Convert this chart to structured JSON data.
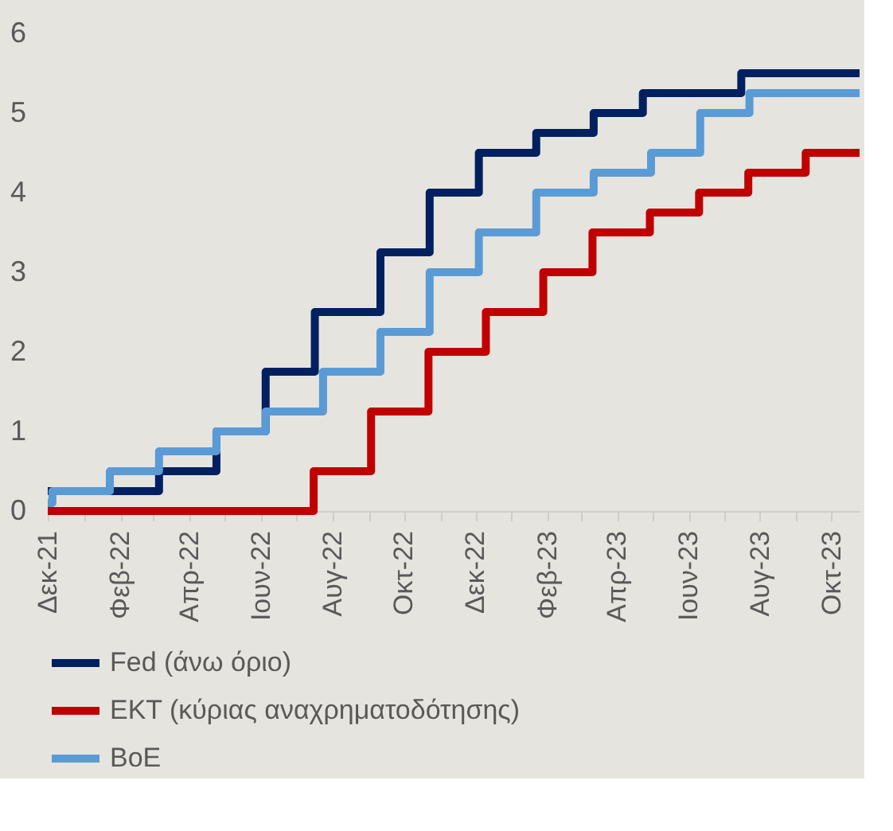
{
  "chart_data": {
    "type": "step",
    "legend": "bottom",
    "grid": false,
    "line_style": "solid",
    "marker": "none",
    "xlim": [
      "2021-12-12",
      "2023-11-05"
    ],
    "xticks": [
      {
        "value": "2021-12-12",
        "label": "Δεκ-21"
      },
      {
        "value": "2022-01-12",
        "label": null
      },
      {
        "value": "2022-02-12",
        "label": "Φεβ-22"
      },
      {
        "value": "2022-03-12",
        "label": null
      },
      {
        "value": "2022-04-12",
        "label": "Απρ-22"
      },
      {
        "value": "2022-05-12",
        "label": null
      },
      {
        "value": "2022-06-12",
        "label": "Ιουν-22"
      },
      {
        "value": "2022-07-12",
        "label": null
      },
      {
        "value": "2022-08-12",
        "label": "Αυγ-22"
      },
      {
        "value": "2022-09-12",
        "label": null
      },
      {
        "value": "2022-10-12",
        "label": "Οκτ-22"
      },
      {
        "value": "2022-11-12",
        "label": null
      },
      {
        "value": "2022-12-12",
        "label": "Δεκ-22"
      },
      {
        "value": "2023-01-12",
        "label": null
      },
      {
        "value": "2023-02-12",
        "label": "Φεβ-23"
      },
      {
        "value": "2023-03-12",
        "label": null
      },
      {
        "value": "2023-04-12",
        "label": "Απρ-23"
      },
      {
        "value": "2023-05-12",
        "label": null
      },
      {
        "value": "2023-06-12",
        "label": "Ιουν-23"
      },
      {
        "value": "2023-07-12",
        "label": null
      },
      {
        "value": "2023-08-12",
        "label": "Αυγ-23"
      },
      {
        "value": "2023-09-12",
        "label": null
      },
      {
        "value": "2023-10-12",
        "label": "Οκτ-23"
      }
    ],
    "ylim": [
      0,
      6
    ],
    "yticks": [
      0,
      1,
      2,
      3,
      4,
      5,
      6
    ],
    "series": [
      {
        "name": "Fed (άνω όριο)",
        "color": "#002060",
        "x": [
          "2021-12-12",
          "2022-03-17",
          "2022-05-05",
          "2022-06-16",
          "2022-07-28",
          "2022-09-22",
          "2022-11-03",
          "2022-12-15",
          "2023-02-02",
          "2023-03-23",
          "2023-05-04",
          "2023-07-27",
          "2023-11-05"
        ],
        "values": [
          0.25,
          0.5,
          1.0,
          1.75,
          2.5,
          3.25,
          4.0,
          4.5,
          4.75,
          5.0,
          5.25,
          5.5,
          5.5
        ]
      },
      {
        "name": "ΕΚΤ (κύριας αναχρηματοδότησης)",
        "color": "#c00000",
        "x": [
          "2021-12-12",
          "2022-07-27",
          "2022-09-14",
          "2022-11-02",
          "2022-12-21",
          "2023-02-08",
          "2023-03-22",
          "2023-05-10",
          "2023-06-21",
          "2023-08-02",
          "2023-09-20",
          "2023-11-05"
        ],
        "values": [
          0,
          0.5,
          1.25,
          2.0,
          2.5,
          3.0,
          3.5,
          3.75,
          4.0,
          4.25,
          4.5,
          4.5
        ]
      },
      {
        "name": "BoE",
        "color": "#5b9bd5",
        "x": [
          "2021-12-12",
          "2021-12-16",
          "2022-02-03",
          "2022-03-17",
          "2022-05-05",
          "2022-06-16",
          "2022-08-04",
          "2022-09-22",
          "2022-11-03",
          "2022-12-15",
          "2023-02-02",
          "2023-03-23",
          "2023-05-11",
          "2023-06-22",
          "2023-08-03",
          "2023-11-05"
        ],
        "values": [
          0.1,
          0.25,
          0.5,
          0.75,
          1.0,
          1.25,
          1.75,
          2.25,
          3.0,
          3.5,
          4.0,
          4.25,
          4.5,
          5.0,
          5.25,
          5.25
        ]
      }
    ]
  }
}
